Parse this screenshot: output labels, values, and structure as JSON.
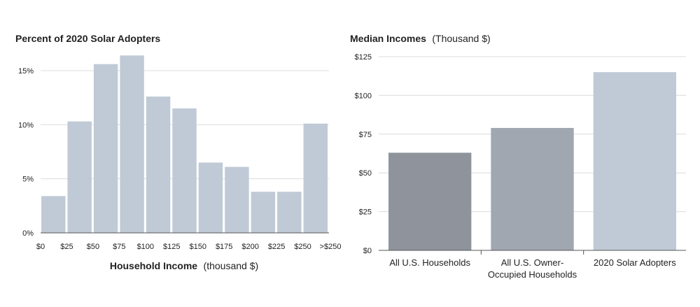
{
  "chart_data": [
    {
      "type": "bar",
      "title": "Percent of 2020 Solar Adopters",
      "xlabel": "Household Income",
      "xlabel_unit": "(thousand $)",
      "x_tick_labels": [
        "$0",
        "$25",
        "$50",
        "$75",
        "$100",
        "$125",
        "$150",
        "$175",
        "$200",
        "$225",
        "$250",
        ">$250"
      ],
      "y_tick_labels": [
        "0%",
        "5%",
        "10%",
        "15%"
      ],
      "ylim": [
        0,
        17
      ],
      "grid": true,
      "bar_color": "#c0cad6",
      "values": [
        3.4,
        10.3,
        15.6,
        16.4,
        12.6,
        11.5,
        6.5,
        6.1,
        3.8,
        3.8,
        10.1
      ]
    },
    {
      "type": "bar",
      "title": "Median Incomes",
      "title_unit": "(Thousand $)",
      "categories": [
        [
          "All U.S. Households"
        ],
        [
          "All U.S. Owner-",
          "Occupied Households"
        ],
        [
          "2020 Solar Adopters"
        ]
      ],
      "values": [
        63,
        79,
        115
      ],
      "colors": [
        "#8f949c",
        "#a1a7b1",
        "#c0cad6"
      ],
      "y_tick_labels": [
        "$0",
        "$25",
        "$50",
        "$75",
        "$100",
        "$125"
      ],
      "ylim": [
        0,
        125
      ],
      "grid": true
    }
  ]
}
